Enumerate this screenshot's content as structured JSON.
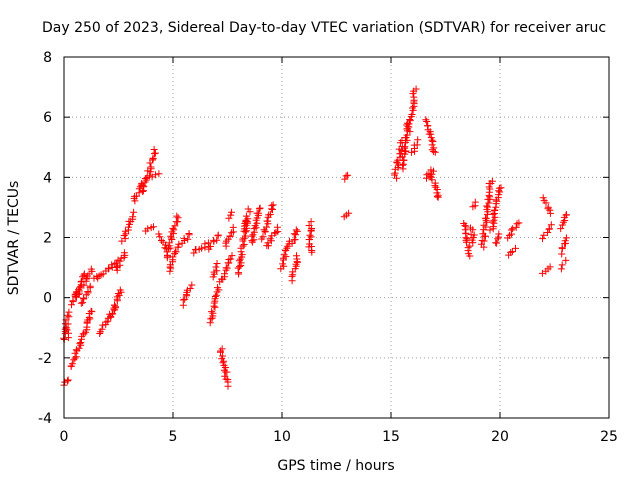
{
  "chart_data": {
    "type": "scatter",
    "title": "Day 250 of 2023, Sidereal Day-to-day VTEC variation (SDTVAR) for receiver aruc",
    "xlabel": "GPS time / hours",
    "ylabel": "SDTVAR / TECUs",
    "xlim": [
      0,
      25
    ],
    "ylim": [
      -4,
      8
    ],
    "xticks": [
      0,
      5,
      10,
      15,
      20,
      25
    ],
    "yticks": [
      -4,
      -2,
      0,
      2,
      4,
      6,
      8
    ],
    "xtick_labels": [
      "0",
      "5",
      "10",
      "15",
      "20",
      "25"
    ],
    "ytick_labels": [
      "-4",
      "-2",
      "0",
      "2",
      "4",
      "6",
      "8"
    ],
    "grid": true,
    "marker": "+",
    "color": "#ff0000",
    "series": [
      {
        "name": "SDTVAR",
        "segments": [
          [
            0.0,
            -2.9,
            0.25,
            -2.7
          ],
          [
            0.0,
            -1.4,
            0.2,
            -0.5
          ],
          [
            0.1,
            -1.0,
            0.25,
            -1.3
          ],
          [
            0.35,
            -2.3,
            1.3,
            -0.4
          ],
          [
            0.35,
            -0.2,
            1.3,
            0.9
          ],
          [
            0.5,
            0.0,
            1.0,
            0.8
          ],
          [
            0.8,
            -0.2,
            1.2,
            0.4
          ],
          [
            1.6,
            -1.15,
            2.4,
            -0.3
          ],
          [
            1.4,
            0.6,
            2.5,
            1.2
          ],
          [
            2.2,
            -0.6,
            2.6,
            0.3
          ],
          [
            2.4,
            0.9,
            2.8,
            1.5
          ],
          [
            2.7,
            1.9,
            3.2,
            2.8
          ],
          [
            3.2,
            3.2,
            3.6,
            3.8
          ],
          [
            3.6,
            3.5,
            4.2,
            4.9
          ],
          [
            3.8,
            2.2,
            4.1,
            2.4
          ],
          [
            4.1,
            4.0,
            4.4,
            4.1
          ],
          [
            4.4,
            2.1,
            4.7,
            1.6
          ],
          [
            4.7,
            1.3,
            5.2,
            2.7
          ],
          [
            4.8,
            0.9,
            5.3,
            1.8
          ],
          [
            5.4,
            1.8,
            5.8,
            2.1
          ],
          [
            5.5,
            -0.2,
            5.8,
            0.4
          ],
          [
            5.9,
            1.5,
            6.6,
            1.8
          ],
          [
            6.6,
            1.6,
            7.1,
            2.1
          ],
          [
            6.7,
            -0.8,
            7.1,
            0.3
          ],
          [
            6.9,
            0.7,
            7.0,
            1.1
          ],
          [
            7.2,
            -1.7,
            7.5,
            -2.9
          ],
          [
            7.2,
            0.5,
            7.7,
            1.4
          ],
          [
            7.4,
            1.7,
            7.8,
            2.3
          ],
          [
            7.5,
            2.6,
            7.7,
            2.8
          ],
          [
            8.0,
            0.8,
            8.4,
            2.6
          ],
          [
            8.2,
            2.2,
            8.5,
            2.9
          ],
          [
            8.6,
            1.8,
            9.0,
            3.0
          ],
          [
            9.1,
            2.0,
            9.6,
            3.1
          ],
          [
            9.3,
            1.7,
            9.8,
            2.3
          ],
          [
            10.0,
            1.0,
            10.3,
            1.9
          ],
          [
            10.5,
            1.8,
            10.7,
            2.3
          ],
          [
            10.5,
            0.6,
            10.7,
            1.4
          ],
          [
            11.3,
            1.5,
            11.3,
            2.5
          ],
          [
            12.9,
            2.7,
            13.0,
            2.8
          ],
          [
            12.9,
            3.9,
            13.0,
            4.1
          ],
          [
            15.2,
            4.0,
            15.5,
            5.2
          ],
          [
            15.5,
            4.3,
            15.8,
            5.8
          ],
          [
            15.8,
            5.5,
            16.1,
            6.9
          ],
          [
            16.0,
            4.8,
            16.2,
            5.2
          ],
          [
            16.6,
            5.9,
            17.0,
            4.8
          ],
          [
            16.8,
            4.2,
            17.2,
            3.3
          ],
          [
            16.6,
            4.0,
            16.9,
            4.2
          ],
          [
            18.4,
            2.5,
            18.6,
            1.4
          ],
          [
            18.7,
            2.3,
            18.8,
            1.8
          ],
          [
            18.8,
            3.0,
            18.8,
            3.2
          ],
          [
            19.2,
            1.7,
            19.6,
            3.9
          ],
          [
            19.6,
            2.2,
            20.0,
            3.7
          ],
          [
            19.8,
            1.8,
            20.0,
            2.1
          ],
          [
            20.4,
            2.0,
            20.8,
            2.5
          ],
          [
            20.4,
            1.4,
            20.7,
            1.6
          ],
          [
            22.0,
            3.3,
            22.3,
            2.8
          ],
          [
            22.0,
            0.8,
            22.3,
            1.0
          ],
          [
            22.0,
            2.0,
            22.3,
            2.4
          ],
          [
            22.8,
            2.3,
            23.1,
            2.8
          ],
          [
            22.8,
            1.5,
            23.1,
            2.0
          ],
          [
            22.8,
            1.0,
            23.0,
            1.2
          ]
        ]
      }
    ]
  }
}
